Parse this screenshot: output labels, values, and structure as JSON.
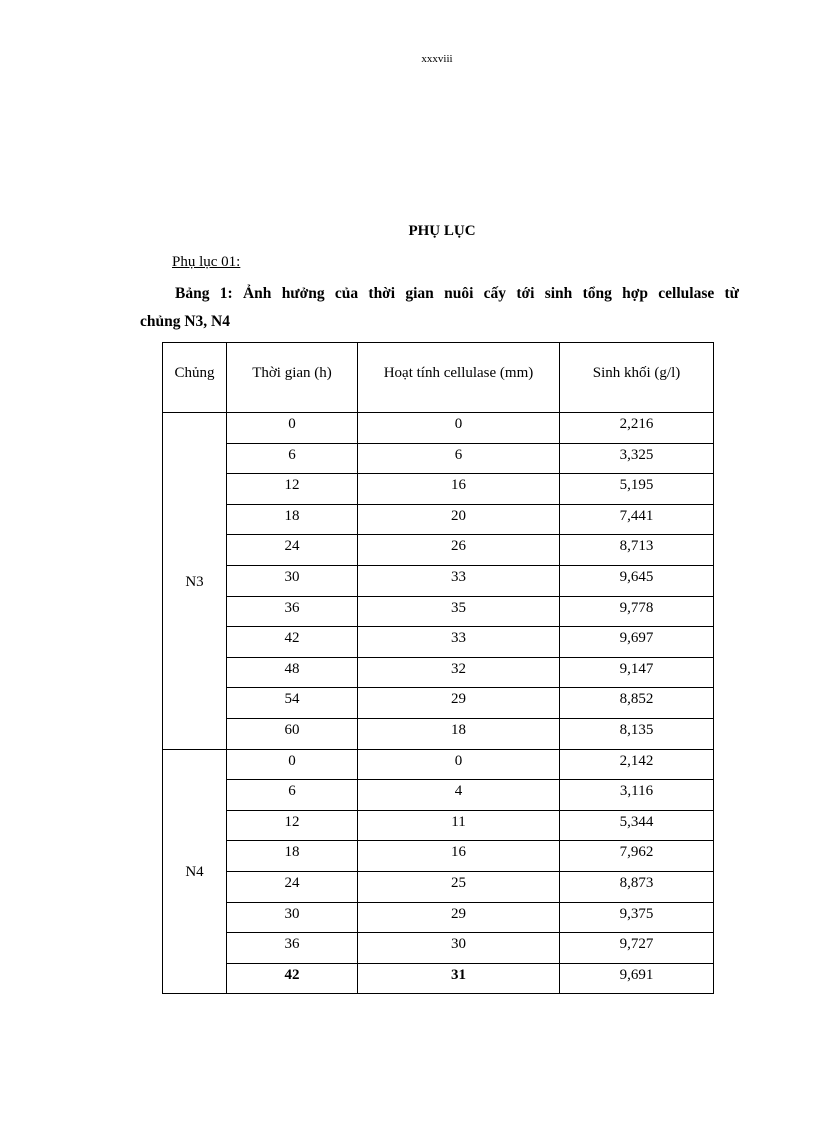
{
  "page_number": "xxxviii",
  "title": "PHỤ LỤC",
  "subtitle": "Phụ lục 01:",
  "caption_line1": "Bảng 1: Ảnh hưởng của thời gian nuôi cấy tới sinh tổng hợp cellulase từ",
  "caption_line2": "chủng N3, N4",
  "table": {
    "headers": [
      "Chủng",
      "Thời gian (h)",
      "Hoạt tính cellulase (mm)",
      "Sinh khối (g/l)"
    ],
    "groups": [
      {
        "strain": "N3",
        "rows": [
          [
            "0",
            "0",
            "2,216"
          ],
          [
            "6",
            "6",
            "3,325"
          ],
          [
            "12",
            "16",
            "5,195"
          ],
          [
            "18",
            "20",
            "7,441"
          ],
          [
            "24",
            "26",
            "8,713"
          ],
          [
            "30",
            "33",
            "9,645"
          ],
          [
            "36",
            "35",
            "9,778"
          ],
          [
            "42",
            "33",
            "9,697"
          ],
          [
            "48",
            "32",
            "9,147"
          ],
          [
            "54",
            "29",
            "8,852"
          ],
          [
            "60",
            "18",
            "8,135"
          ]
        ]
      },
      {
        "strain": "N4",
        "rows": [
          [
            "0",
            "0",
            "2,142"
          ],
          [
            "6",
            "4",
            "3,116"
          ],
          [
            "12",
            "11",
            "5,344"
          ],
          [
            "18",
            "16",
            "7,962"
          ],
          [
            "24",
            "25",
            "8,873"
          ],
          [
            "30",
            "29",
            "9,375"
          ],
          [
            "36",
            "30",
            "9,727"
          ],
          [
            "42",
            "31",
            "9,691"
          ]
        ]
      }
    ],
    "bold_last_row_cols": [
      0,
      1
    ]
  }
}
